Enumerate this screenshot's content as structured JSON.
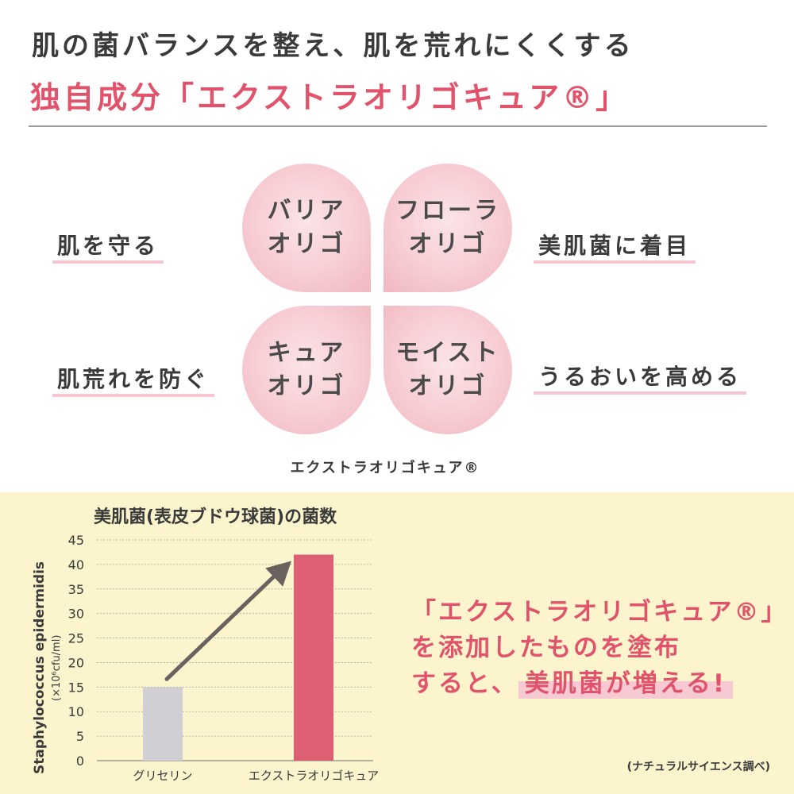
{
  "header": {
    "line1": "肌の菌バランスを整え、肌を荒れにくくする",
    "line2": "独自成分「エクストラオリゴキュア®」"
  },
  "clover": {
    "petals": {
      "top_left": "バリア\nオリゴ",
      "top_right": "フローラ\nオリゴ",
      "bottom_left": "キュア\nオリゴ",
      "bottom_right": "モイスト\nオリゴ"
    },
    "labels": {
      "top_left": "肌を守る",
      "top_right": "美肌菌に着目",
      "bottom_left": "肌荒れを防ぐ",
      "bottom_right": "うるおいを高める"
    },
    "caption": "エクストラオリゴキュア®"
  },
  "colors": {
    "accent_pink": "#e0536b",
    "panel_bg": "#fbf4cd",
    "bar_gray": "#d0d0d4",
    "bar_pink": "#dc5f73",
    "arrow": "#6b625f"
  },
  "chart_data": {
    "type": "bar",
    "title": "美肌菌(表皮ブドウ球菌)の菌数",
    "ylabel": "Staphylococcus epidermidis",
    "yunit": "(×10⁶cfu/ml)",
    "categories": [
      "グリセリン",
      "エクストラオリゴキュア"
    ],
    "values": [
      15,
      42
    ],
    "ylim": [
      0,
      45
    ],
    "yticks": [
      0,
      5,
      10,
      15,
      20,
      25,
      30,
      35,
      40,
      45
    ],
    "grid": true,
    "annotation": "arrow from グリセリン bar to エクストラオリゴキュア bar"
  },
  "callout": {
    "line1": "「エクストラオリゴキュア®」",
    "line2": "を添加したものを塗布",
    "line3_prefix": "すると、",
    "line3_highlight": "美肌菌が増える!"
  },
  "source_note": "(ナチュラルサイエンス調べ)"
}
